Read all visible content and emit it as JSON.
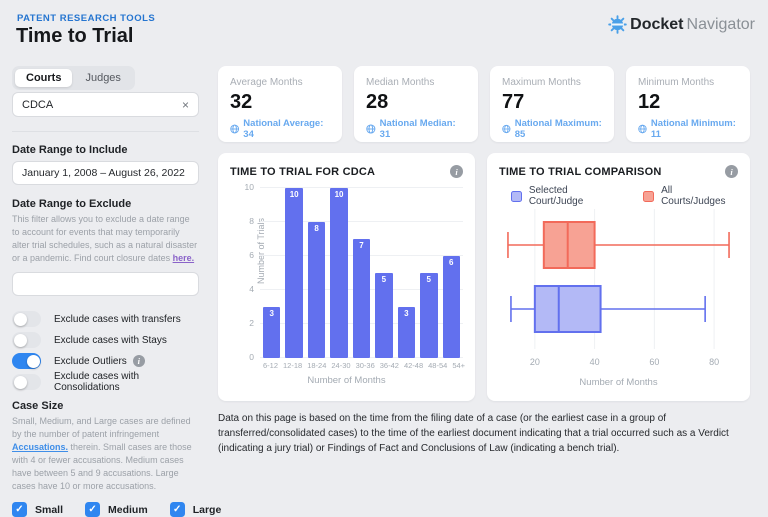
{
  "page": {
    "eyebrow": "PATENT RESEARCH TOOLS",
    "title": "Time to Trial"
  },
  "logo": {
    "part1": "Docket",
    "part2": "Navigator"
  },
  "icons": {
    "info": "i",
    "clear": "×",
    "check": "✓"
  },
  "colors": {
    "accent_blue": "#2575d0",
    "toggle_on": "#2f86f0",
    "checkbox": "#2f86f0",
    "national_blue": "#68a9ef",
    "bar_blue": "#6270ee",
    "box_blue_stroke": "#6270ee",
    "box_blue_fill": "#b3b9f6",
    "box_red_stroke": "#f26a5a",
    "box_red_fill": "#f7a294"
  },
  "sidebar": {
    "tabs": [
      {
        "label": "Courts",
        "active": true
      },
      {
        "label": "Judges",
        "active": false
      }
    ],
    "court_input": {
      "value": "CDCA"
    },
    "date_include": {
      "label": "Date Range to Include",
      "value": "January 1, 2008 – August 26, 2022"
    },
    "date_exclude": {
      "label": "Date Range to Exclude",
      "description": "This filter allows you to exclude a date range to account for events that may temporarily alter trial schedules, such as a natural disaster or a pandemic. Find court closure dates ",
      "link_text": "here.",
      "value": ""
    },
    "toggles": [
      {
        "label": "Exclude cases with transfers",
        "on": false,
        "info": false
      },
      {
        "label": "Exclude cases with Stays",
        "on": false,
        "info": false
      },
      {
        "label": "Exclude Outliers",
        "on": true,
        "info": true
      },
      {
        "label": "Exclude cases with Consolidations",
        "on": false,
        "info": false
      }
    ],
    "case_size": {
      "label": "Case Size",
      "description_before": "Small, Medium, and Large cases are defined by the number of patent infringement ",
      "link_text": "Accusations.",
      "description_after": " therein. Small cases are those with 4 or fewer accusations. Medium cases have between 5 and 9 accusations. Large cases have 10 or more accusations.",
      "checkboxes": [
        {
          "label": "Small",
          "checked": true
        },
        {
          "label": "Medium",
          "checked": true
        },
        {
          "label": "Large",
          "checked": true
        }
      ]
    }
  },
  "stats": [
    {
      "label": "Average Months",
      "value": "32",
      "national": "National Average: 34"
    },
    {
      "label": "Median Months",
      "value": "28",
      "national": "National Median: 31"
    },
    {
      "label": "Maximum Months",
      "value": "77",
      "national": "National Maximum: 85"
    },
    {
      "label": "Minimum Months",
      "value": "12",
      "national": "National Minimum: 11"
    }
  ],
  "chart_data": [
    {
      "type": "bar",
      "title": "TIME TO TRIAL FOR CDCA",
      "categories": [
        "6-12",
        "12-18",
        "18-24",
        "24-30",
        "30-36",
        "36-42",
        "42-48",
        "48-54",
        "54+"
      ],
      "values": [
        3,
        10,
        8,
        10,
        7,
        5,
        3,
        5,
        6
      ],
      "xlabel": "Number of Months",
      "ylabel": "Number of Trials",
      "ylim": [
        0,
        10
      ],
      "ytick_step": 2,
      "grid": true,
      "bar_color": "#6270ee"
    },
    {
      "type": "boxplot",
      "title": "TIME TO TRIAL COMPARISON",
      "xlabel": "Number of Months",
      "xlim": [
        8,
        88
      ],
      "xticks": [
        20,
        40,
        60,
        80
      ],
      "grid": true,
      "legend_position": "top",
      "legend": [
        {
          "label": "Selected Court/Judge",
          "stroke": "#6270ee",
          "fill": "#b3b9f6"
        },
        {
          "label": "All Courts/Judges",
          "stroke": "#f26a5a",
          "fill": "#f7a294"
        }
      ],
      "boxes": [
        {
          "series": "All Courts/Judges",
          "min": 11,
          "q1": 23,
          "median": 31,
          "q3": 40,
          "max": 85,
          "stroke": "#f26a5a",
          "fill": "#f7a294"
        },
        {
          "series": "Selected Court/Judge",
          "min": 12,
          "q1": 20,
          "median": 28,
          "q3": 42,
          "max": 77,
          "stroke": "#6270ee",
          "fill": "#b3b9f6"
        }
      ]
    }
  ],
  "footer": {
    "text": "Data on this page is based on the time from the filing date of a case (or the earliest case in a group of transferred/consolidated cases) to the time of the earliest document indicating that a trial occurred such as a Verdict (indicating a jury trial) or Findings of Fact and Conclusions of Law (indicating a bench trial)."
  }
}
